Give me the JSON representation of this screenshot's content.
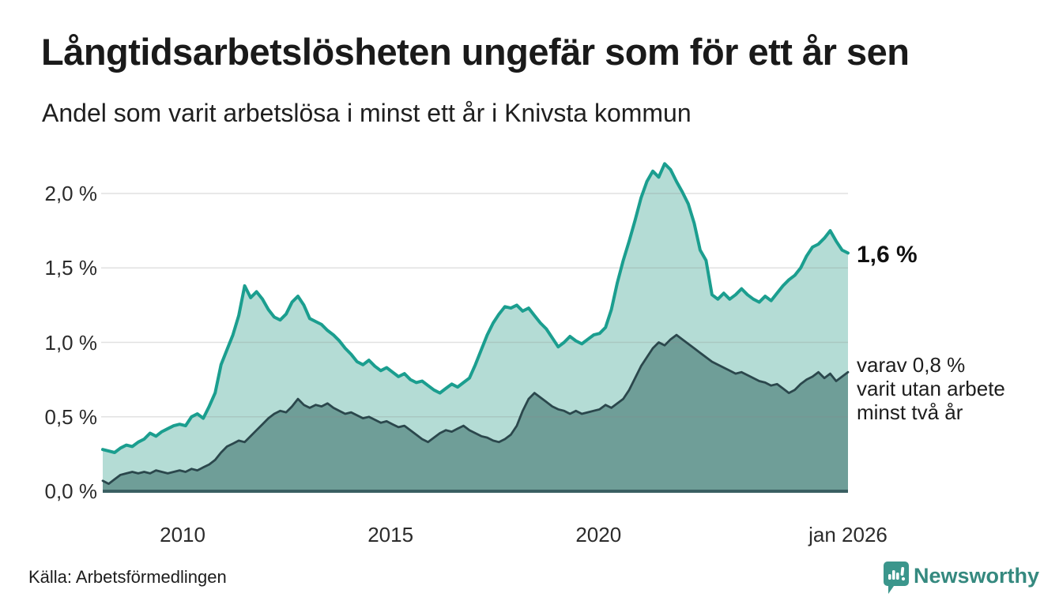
{
  "header": {
    "title": "Långtidsarbetslösheten ungefär som för ett år sen",
    "subtitle": "Andel som varit arbetslösa i minst ett år i Knivsta kommun"
  },
  "annotations": {
    "end_value_label": "1,6 %",
    "secondary_label": "varav 0,8 %\nvarit utan arbete\nminst två år"
  },
  "footer": {
    "source": "Källa: Arbetsförmedlingen",
    "brand": "Newsworthy"
  },
  "chart_data": {
    "type": "area",
    "title": "Långtidsarbetslösheten ungefär som för ett år sen",
    "subtitle": "Andel som varit arbetslösa i minst ett år i Knivsta kommun",
    "unit": "%",
    "x_start": 2008.08,
    "x_end": 2026.0,
    "ylim": [
      0,
      2.35
    ],
    "grid": true,
    "yticks": [
      {
        "v": 0.0,
        "label": "0,0 %"
      },
      {
        "v": 0.5,
        "label": "0,5 %"
      },
      {
        "v": 1.0,
        "label": "1,0 %"
      },
      {
        "v": 1.5,
        "label": "1,5 %"
      },
      {
        "v": 2.0,
        "label": "2,0 %"
      }
    ],
    "xticks": [
      {
        "x": 2010,
        "label": "2010"
      },
      {
        "x": 2015,
        "label": "2015"
      },
      {
        "x": 2020,
        "label": "2020"
      },
      {
        "x": 2026,
        "label": "jan 2026"
      }
    ],
    "colors": {
      "grid": "#8a8a8a",
      "baseline": "#3a5f62",
      "accent_teal": "#1b9e8f",
      "brand_teal": "#3b968c"
    },
    "series": [
      {
        "name": "arbetslosa-minst-ett-ar",
        "end_value": 1.6,
        "end_label": "1,6 %",
        "color_line": "#1b9e8f",
        "color_fill": "#b4dcd5",
        "values": [
          0.28,
          0.27,
          0.26,
          0.29,
          0.31,
          0.3,
          0.33,
          0.35,
          0.39,
          0.37,
          0.4,
          0.42,
          0.44,
          0.45,
          0.44,
          0.5,
          0.52,
          0.49,
          0.57,
          0.66,
          0.85,
          0.95,
          1.05,
          1.18,
          1.38,
          1.3,
          1.34,
          1.29,
          1.22,
          1.17,
          1.15,
          1.19,
          1.27,
          1.31,
          1.25,
          1.16,
          1.14,
          1.12,
          1.08,
          1.05,
          1.01,
          0.96,
          0.92,
          0.87,
          0.85,
          0.88,
          0.84,
          0.81,
          0.83,
          0.8,
          0.77,
          0.79,
          0.75,
          0.73,
          0.74,
          0.71,
          0.68,
          0.66,
          0.69,
          0.72,
          0.7,
          0.73,
          0.76,
          0.85,
          0.95,
          1.05,
          1.13,
          1.19,
          1.24,
          1.23,
          1.25,
          1.21,
          1.23,
          1.18,
          1.13,
          1.09,
          1.03,
          0.97,
          1.0,
          1.04,
          1.01,
          0.99,
          1.02,
          1.05,
          1.06,
          1.1,
          1.22,
          1.4,
          1.55,
          1.68,
          1.82,
          1.97,
          2.08,
          2.15,
          2.11,
          2.2,
          2.16,
          2.08,
          2.01,
          1.93,
          1.8,
          1.62,
          1.55,
          1.32,
          1.29,
          1.33,
          1.29,
          1.32,
          1.36,
          1.32,
          1.29,
          1.27,
          1.31,
          1.28,
          1.33,
          1.38,
          1.42,
          1.45,
          1.5,
          1.58,
          1.64,
          1.66,
          1.7,
          1.75,
          1.68,
          1.62,
          1.6
        ]
      },
      {
        "name": "arbetslosa-minst-tva-ar",
        "end_value": 0.8,
        "end_label": "varav 0,8 % varit utan arbete minst två år",
        "color_line": "#2b474c",
        "color_fill": "#6f9e98",
        "values": [
          0.07,
          0.05,
          0.08,
          0.11,
          0.12,
          0.13,
          0.12,
          0.13,
          0.12,
          0.14,
          0.13,
          0.12,
          0.13,
          0.14,
          0.13,
          0.15,
          0.14,
          0.16,
          0.18,
          0.21,
          0.26,
          0.3,
          0.32,
          0.34,
          0.33,
          0.37,
          0.41,
          0.45,
          0.49,
          0.52,
          0.54,
          0.53,
          0.57,
          0.62,
          0.58,
          0.56,
          0.58,
          0.57,
          0.59,
          0.56,
          0.54,
          0.52,
          0.53,
          0.51,
          0.49,
          0.5,
          0.48,
          0.46,
          0.47,
          0.45,
          0.43,
          0.44,
          0.41,
          0.38,
          0.35,
          0.33,
          0.36,
          0.39,
          0.41,
          0.4,
          0.42,
          0.44,
          0.41,
          0.39,
          0.37,
          0.36,
          0.34,
          0.33,
          0.35,
          0.38,
          0.44,
          0.54,
          0.62,
          0.66,
          0.63,
          0.6,
          0.57,
          0.55,
          0.54,
          0.52,
          0.54,
          0.52,
          0.53,
          0.54,
          0.55,
          0.58,
          0.56,
          0.59,
          0.62,
          0.68,
          0.76,
          0.84,
          0.9,
          0.96,
          1.0,
          0.98,
          1.02,
          1.05,
          1.02,
          0.99,
          0.96,
          0.93,
          0.9,
          0.87,
          0.85,
          0.83,
          0.81,
          0.79,
          0.8,
          0.78,
          0.76,
          0.74,
          0.73,
          0.71,
          0.72,
          0.69,
          0.66,
          0.68,
          0.72,
          0.75,
          0.77,
          0.8,
          0.76,
          0.79,
          0.74,
          0.77,
          0.8
        ]
      }
    ]
  }
}
